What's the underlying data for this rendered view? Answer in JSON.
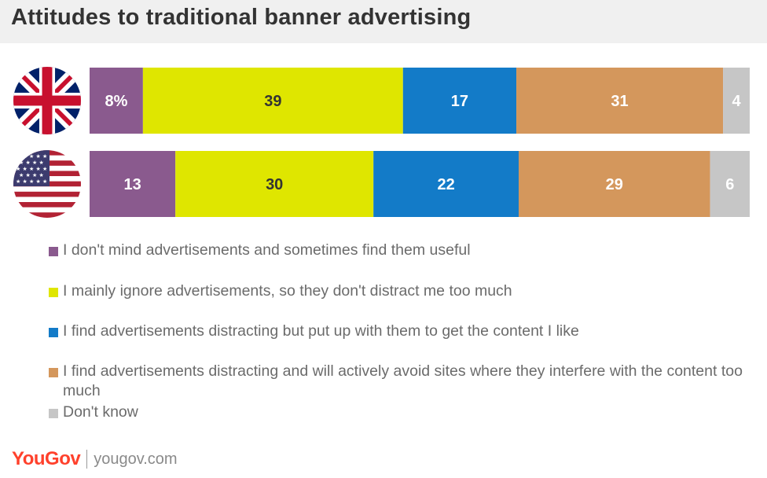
{
  "title": "Attitudes to traditional banner advertising",
  "chart_data": {
    "type": "bar",
    "orientation": "horizontal",
    "stacked": true,
    "categories": [
      "UK",
      "US"
    ],
    "series": [
      {
        "name": "I don't mind advertisements and sometimes find them useful",
        "color": "#8a5a8e",
        "values": [
          8,
          13
        ],
        "labels": [
          "8%",
          "13"
        ]
      },
      {
        "name": "I mainly ignore advertisements, so they don't distract me too much",
        "color": "#dfe600",
        "values": [
          39,
          30
        ],
        "labels": [
          "39",
          "30"
        ]
      },
      {
        "name": "I find advertisements distracting but put up with them to get the content I like",
        "color": "#137bc8",
        "values": [
          17,
          22
        ],
        "labels": [
          "17",
          "22"
        ]
      },
      {
        "name": "I find advertisements distracting and will actively avoid sites where they interfere with the content too much",
        "color": "#d4975c",
        "values": [
          31,
          29
        ],
        "labels": [
          "31",
          "29"
        ]
      },
      {
        "name": "Don't know",
        "color": "#c6c6c6",
        "values": [
          4,
          6
        ],
        "labels": [
          "4",
          "6"
        ]
      }
    ],
    "legend_position": "bottom",
    "grid": false
  },
  "rows": [
    {
      "flag": "uk-flag-icon"
    },
    {
      "flag": "us-flag-icon"
    }
  ],
  "footer": {
    "brand": "YouGov",
    "site": "yougov.com"
  }
}
